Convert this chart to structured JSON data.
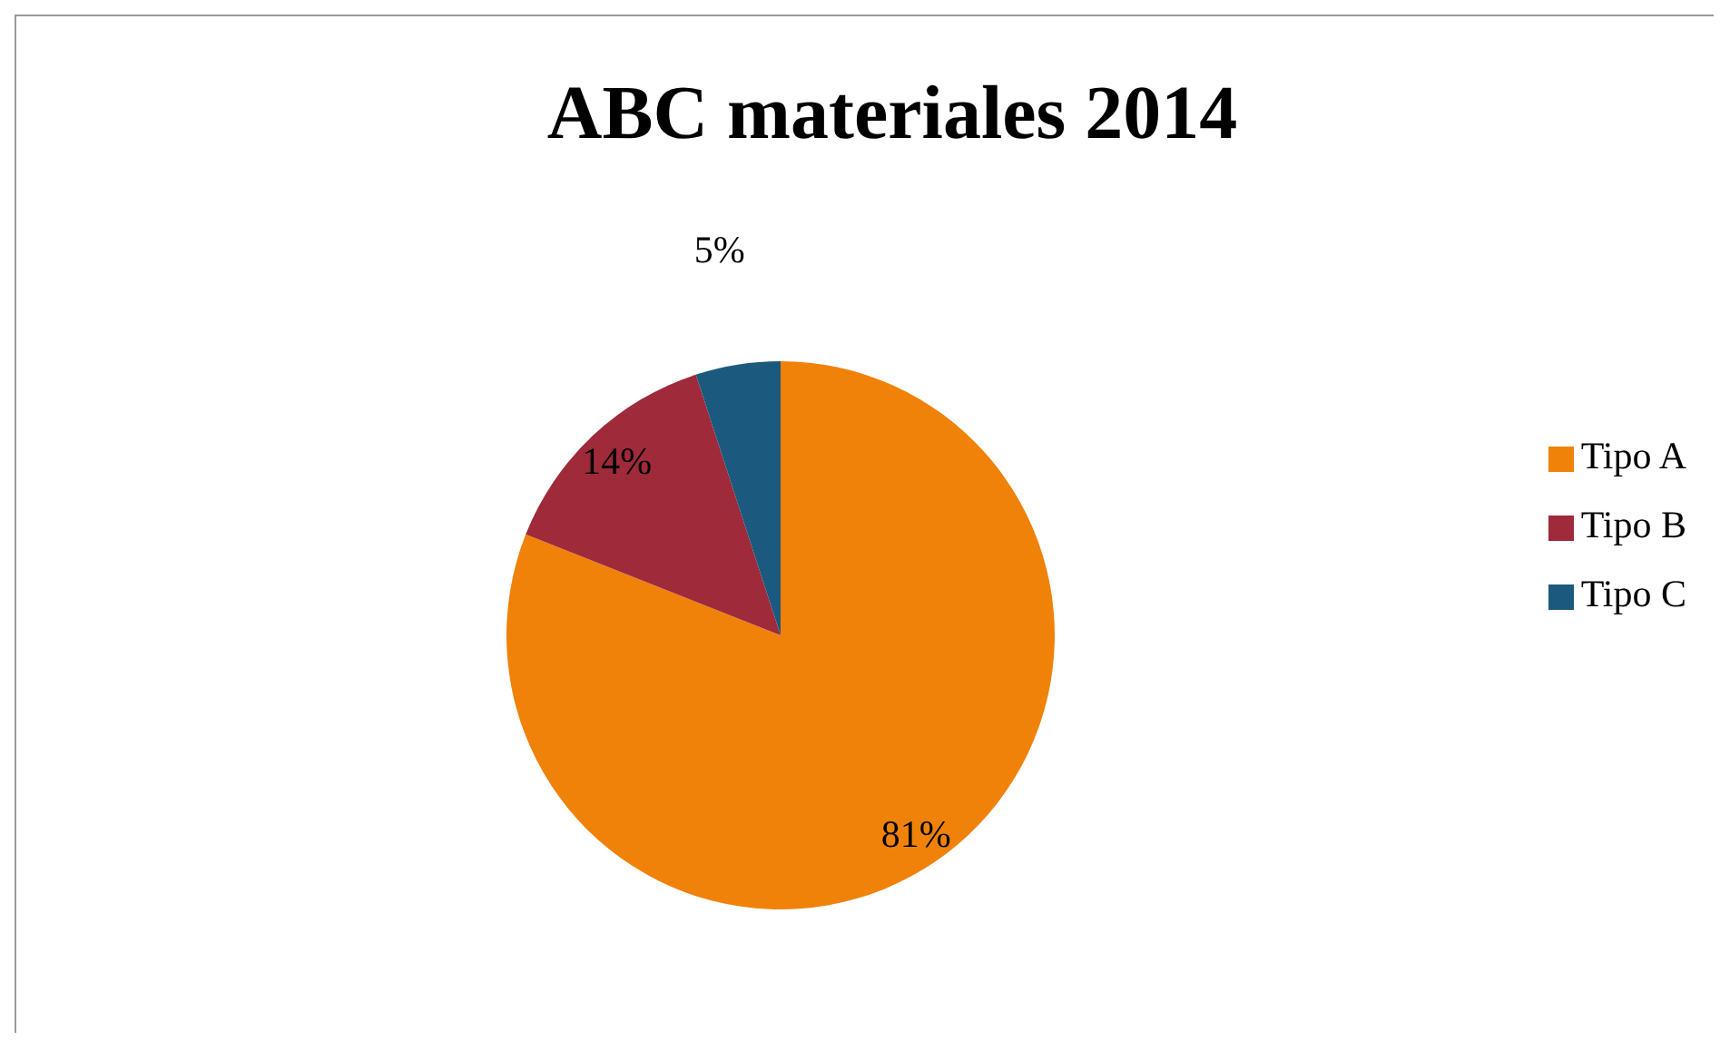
{
  "chart_data": {
    "type": "pie",
    "title": "ABC materiales 2014",
    "categories": [
      "Tipo A",
      "Tipo B",
      "Tipo C"
    ],
    "values": [
      81,
      14,
      5
    ],
    "colors": [
      "#f0820a",
      "#9e2a3a",
      "#1b5a7e"
    ],
    "value_labels": [
      "81%",
      "14%",
      "5%"
    ],
    "legend": "right"
  }
}
